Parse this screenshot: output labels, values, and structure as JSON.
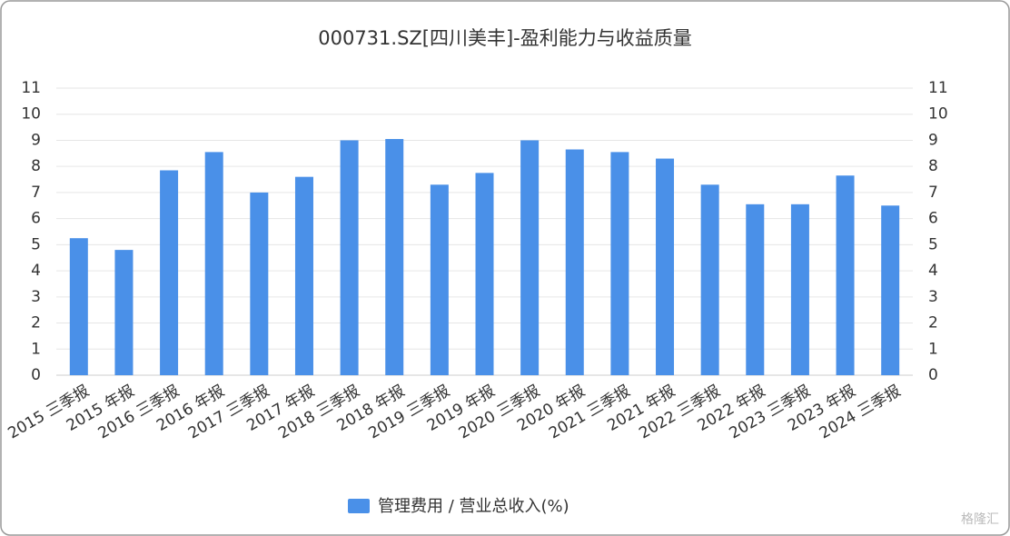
{
  "chart_data": {
    "type": "bar",
    "title": "000731.SZ[四川美丰]-盈利能力与收益质量",
    "categories": [
      "2015 三季报",
      "2015 年报",
      "2016 三季报",
      "2016 年报",
      "2017 三季报",
      "2017 年报",
      "2018 三季报",
      "2018 年报",
      "2019 三季报",
      "2019 年报",
      "2020 三季报",
      "2020 年报",
      "2021 三季报",
      "2021 年报",
      "2022 三季报",
      "2022 年报",
      "2023 三季报",
      "2023 年报",
      "2024 三季报"
    ],
    "series": [
      {
        "name": "管理费用 / 营业总收入(%)",
        "color": "#4a90e8",
        "values": [
          5.25,
          4.8,
          7.85,
          8.55,
          7.0,
          7.6,
          9.0,
          9.05,
          7.3,
          7.75,
          9.0,
          8.65,
          8.55,
          8.3,
          7.3,
          6.55,
          6.55,
          7.65,
          6.5
        ]
      }
    ],
    "ylim": [
      0,
      11
    ],
    "yticks": [
      0,
      1,
      2,
      3,
      4,
      5,
      6,
      7,
      8,
      9,
      10,
      11
    ],
    "y2lim": [
      0,
      11
    ],
    "y2ticks": [
      0,
      1,
      2,
      3,
      4,
      5,
      6,
      7,
      8,
      9,
      10,
      11
    ],
    "grid": true,
    "legend": "bottom",
    "watermark": "格隆汇"
  }
}
